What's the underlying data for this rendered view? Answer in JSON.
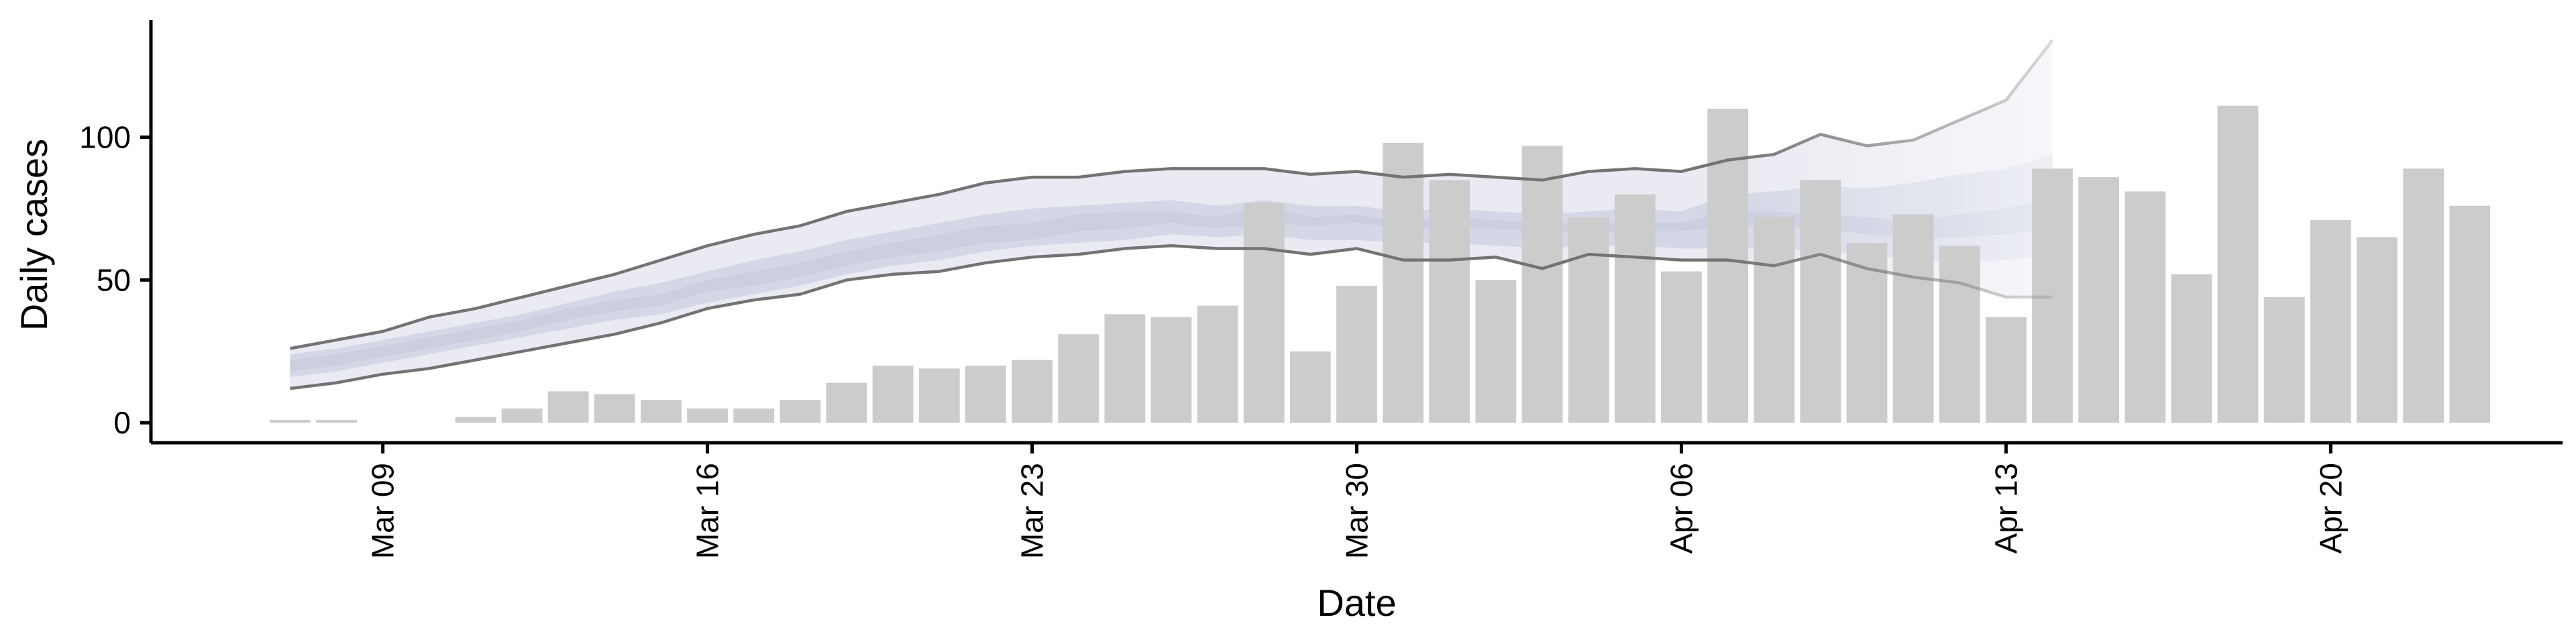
{
  "chart_data": {
    "type": "bar",
    "xlabel": "Date",
    "ylabel": "Daily cases",
    "xlim": [
      "2020-03-04",
      "2020-04-25"
    ],
    "ylim": [
      -7,
      141
    ],
    "x_ticks": [
      {
        "date": "2020-03-09",
        "label": "Mar 09"
      },
      {
        "date": "2020-03-16",
        "label": "Mar 16"
      },
      {
        "date": "2020-03-23",
        "label": "Mar 23"
      },
      {
        "date": "2020-03-30",
        "label": "Mar 30"
      },
      {
        "date": "2020-04-06",
        "label": "Apr 06"
      },
      {
        "date": "2020-04-13",
        "label": "Apr 13"
      },
      {
        "date": "2020-04-20",
        "label": "Apr 20"
      }
    ],
    "y_ticks": [
      0,
      50,
      100
    ],
    "grid": false,
    "colors": {
      "bars": "#cccccc",
      "band_outer": "#e6e7f0",
      "band_inner": "#c3c8dc",
      "interval_lines": "#737373",
      "axis": "#000000"
    },
    "bars": {
      "dates": [
        "2020-03-07",
        "2020-03-08",
        "2020-03-09",
        "2020-03-10",
        "2020-03-11",
        "2020-03-12",
        "2020-03-13",
        "2020-03-14",
        "2020-03-15",
        "2020-03-16",
        "2020-03-17",
        "2020-03-18",
        "2020-03-19",
        "2020-03-20",
        "2020-03-21",
        "2020-03-22",
        "2020-03-23",
        "2020-03-24",
        "2020-03-25",
        "2020-03-26",
        "2020-03-27",
        "2020-03-28",
        "2020-03-29",
        "2020-03-30",
        "2020-03-31",
        "2020-04-01",
        "2020-04-02",
        "2020-04-03",
        "2020-04-04",
        "2020-04-05",
        "2020-04-06",
        "2020-04-07",
        "2020-04-08",
        "2020-04-09",
        "2020-04-10",
        "2020-04-11",
        "2020-04-12",
        "2020-04-13",
        "2020-04-14",
        "2020-04-15",
        "2020-04-16",
        "2020-04-17",
        "2020-04-18",
        "2020-04-19",
        "2020-04-20",
        "2020-04-21",
        "2020-04-22",
        "2020-04-23"
      ],
      "values": [
        1,
        1,
        0,
        0,
        2,
        5,
        11,
        10,
        8,
        5,
        5,
        8,
        14,
        20,
        19,
        20,
        22,
        31,
        38,
        37,
        41,
        77,
        25,
        48,
        98,
        85,
        50,
        97,
        72,
        80,
        53,
        110,
        72,
        85,
        63,
        73,
        62,
        37,
        89,
        86,
        81,
        52,
        111,
        44,
        71,
        65,
        89,
        76
      ]
    },
    "estimate": {
      "dates": [
        "2020-03-07",
        "2020-03-08",
        "2020-03-09",
        "2020-03-10",
        "2020-03-11",
        "2020-03-12",
        "2020-03-13",
        "2020-03-14",
        "2020-03-15",
        "2020-03-16",
        "2020-03-17",
        "2020-03-18",
        "2020-03-19",
        "2020-03-20",
        "2020-03-21",
        "2020-03-22",
        "2020-03-23",
        "2020-03-24",
        "2020-03-25",
        "2020-03-26",
        "2020-03-27",
        "2020-03-28",
        "2020-03-29",
        "2020-03-30",
        "2020-03-31",
        "2020-04-01",
        "2020-04-02",
        "2020-04-03",
        "2020-04-04",
        "2020-04-05",
        "2020-04-06",
        "2020-04-07",
        "2020-04-08",
        "2020-04-09",
        "2020-04-10",
        "2020-04-11",
        "2020-04-12",
        "2020-04-13",
        "2020-04-14"
      ],
      "lower_90": [
        12,
        14,
        17,
        19,
        22,
        25,
        28,
        31,
        35,
        40,
        43,
        45,
        50,
        52,
        53,
        56,
        58,
        59,
        61,
        62,
        61,
        61,
        59,
        61,
        57,
        57,
        58,
        54,
        59,
        58,
        57,
        57,
        55,
        59,
        54,
        51,
        49,
        44,
        44
      ],
      "upper_90": [
        26,
        29,
        32,
        37,
        40,
        44,
        48,
        52,
        57,
        62,
        66,
        69,
        74,
        77,
        80,
        84,
        86,
        86,
        88,
        89,
        89,
        89,
        87,
        88,
        86,
        87,
        86,
        85,
        88,
        89,
        88,
        92,
        94,
        101,
        97,
        99,
        106,
        113,
        134
      ],
      "lower_50": [
        16,
        18,
        21,
        24,
        27,
        30,
        33,
        36,
        38,
        42,
        45,
        48,
        52,
        55,
        57,
        60,
        62,
        63,
        64,
        66,
        65,
        66,
        64,
        64,
        63,
        63,
        62,
        61,
        62,
        62,
        61,
        61,
        61,
        60,
        59,
        57,
        56,
        57,
        59
      ],
      "upper_50": [
        24,
        26,
        29,
        32,
        35,
        38,
        42,
        46,
        49,
        53,
        57,
        60,
        64,
        67,
        70,
        73,
        75,
        76,
        77,
        78,
        76,
        78,
        76,
        76,
        74,
        75,
        74,
        73,
        74,
        75,
        74,
        80,
        81,
        83,
        82,
        84,
        87,
        89,
        94
      ],
      "lower_20": [
        18,
        20,
        23,
        26,
        29,
        32,
        36,
        39,
        41,
        46,
        48,
        51,
        55,
        58,
        60,
        63,
        64,
        67,
        68,
        70,
        68,
        70,
        69,
        70,
        68,
        68,
        68,
        67,
        67,
        67,
        67,
        69,
        69,
        68,
        66,
        64,
        65,
        66,
        68
      ],
      "upper_20": [
        22,
        24,
        27,
        30,
        33,
        36,
        40,
        43,
        45,
        50,
        53,
        56,
        60,
        63,
        66,
        69,
        70,
        73,
        74,
        74,
        72,
        76,
        72,
        73,
        70,
        72,
        71,
        70,
        70,
        70,
        70,
        74,
        74,
        73,
        72,
        71,
        73,
        75,
        79
      ]
    }
  }
}
